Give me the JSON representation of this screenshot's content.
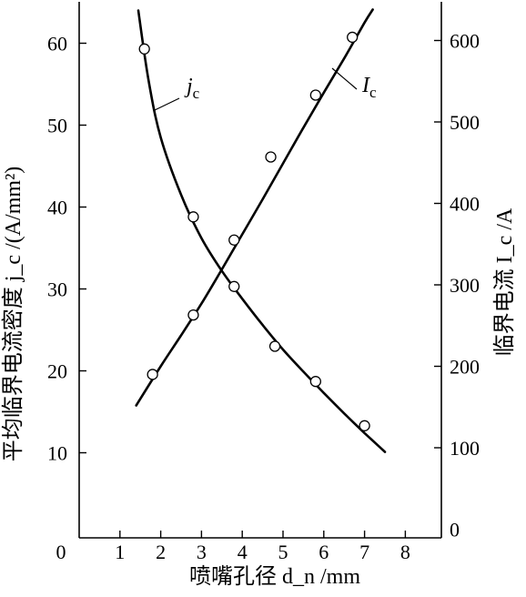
{
  "chart_data": {
    "type": "line",
    "xlabel": "喷嘴孔径 d_n /mm",
    "ylabel_left": "平均临界电流密度 j_c /(A/mm²)",
    "ylabel_right": "临界电流 I_c /A",
    "xlim": [
      0,
      8.5
    ],
    "ylim_left": [
      5,
      65
    ],
    "ylim_right": [
      0,
      650
    ],
    "x_ticks": [
      0,
      1,
      2,
      3,
      4,
      5,
      6,
      7,
      8
    ],
    "y_ticks_left": [
      10,
      20,
      30,
      40,
      50,
      60
    ],
    "y_ticks_right": [
      0,
      100,
      200,
      300,
      400,
      500,
      600
    ],
    "grid": false,
    "series": [
      {
        "name": "j_c",
        "label_main": "j",
        "label_sub": "c",
        "axis": "left",
        "points": [
          [
            1.6,
            59.3
          ],
          [
            2.8,
            38.8
          ],
          [
            3.8,
            30.3
          ],
          [
            4.8,
            23.0
          ],
          [
            5.8,
            18.7
          ],
          [
            7.0,
            13.3
          ]
        ],
        "curve": [
          [
            1.45,
            64
          ],
          [
            1.7,
            55.5
          ],
          [
            2.0,
            48.5
          ],
          [
            2.5,
            41.5
          ],
          [
            3.0,
            36.2
          ],
          [
            3.5,
            32.2
          ],
          [
            4.0,
            28.8
          ],
          [
            4.5,
            25.6
          ],
          [
            5.0,
            22.6
          ],
          [
            5.5,
            19.9
          ],
          [
            6.0,
            17.3
          ],
          [
            6.5,
            14.8
          ],
          [
            7.0,
            12.4
          ],
          [
            7.5,
            10.1
          ]
        ]
      },
      {
        "name": "I_c",
        "label_main": "I",
        "label_sub": "c",
        "axis": "right",
        "points": [
          [
            1.8,
            190
          ],
          [
            2.8,
            263
          ],
          [
            3.8,
            355
          ],
          [
            4.7,
            457
          ],
          [
            5.8,
            533
          ],
          [
            6.7,
            604
          ]
        ],
        "curve": [
          [
            1.4,
            152
          ],
          [
            2.0,
            200
          ],
          [
            2.5,
            238
          ],
          [
            3.0,
            277
          ],
          [
            3.5,
            319
          ],
          [
            4.0,
            362
          ],
          [
            4.5,
            405
          ],
          [
            5.0,
            449
          ],
          [
            5.5,
            493
          ],
          [
            6.0,
            536
          ],
          [
            6.5,
            578
          ],
          [
            7.0,
            622
          ],
          [
            7.2,
            638
          ]
        ]
      }
    ]
  }
}
